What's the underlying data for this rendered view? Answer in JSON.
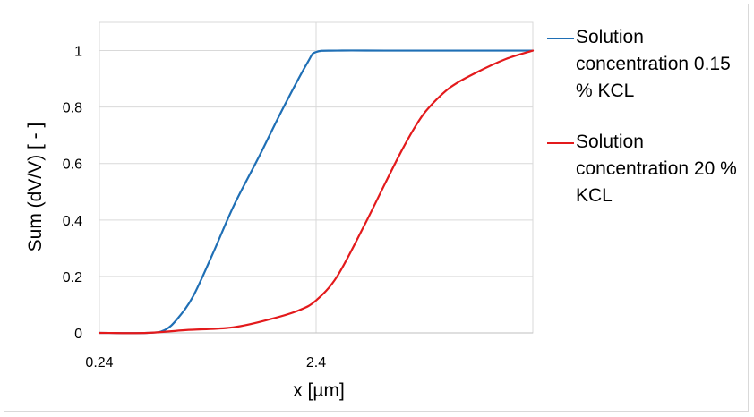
{
  "chart_data": {
    "type": "line",
    "xlabel": "x [µm]",
    "ylabel": "Sum (dV/V) [ - ]",
    "x_scale": "log",
    "xlim": [
      0.24,
      24
    ],
    "ylim": [
      0,
      1.1
    ],
    "x_ticks": [
      0.24,
      2.4
    ],
    "x_tick_labels": [
      "0.24",
      "2.4"
    ],
    "y_ticks": [
      0,
      0.2,
      0.4,
      0.6,
      0.8,
      1
    ],
    "y_tick_labels": [
      "0",
      "0.2",
      "0.4",
      "0.6",
      "0.8",
      "1"
    ],
    "grid": true,
    "legend_position": "right",
    "series": [
      {
        "name": "Solution concentration 0.15 % KCL",
        "color": "#1f6fb5",
        "x": [
          0.24,
          0.4,
          0.48,
          0.55,
          0.65,
          0.8,
          1.0,
          1.3,
          1.7,
          2.2,
          2.4,
          3.0,
          5.0,
          10.0,
          24.0
        ],
        "y": [
          0.0,
          0.0,
          0.01,
          0.05,
          0.13,
          0.28,
          0.45,
          0.62,
          0.8,
          0.96,
          0.995,
          1.0,
          1.0,
          1.0,
          1.0
        ]
      },
      {
        "name": "Solution concentration 20 % KCL",
        "color": "#e31a1c",
        "x": [
          0.24,
          0.4,
          0.6,
          1.0,
          1.5,
          2.0,
          2.4,
          3.0,
          4.0,
          5.0,
          6.0,
          7.0,
          8.0,
          10.0,
          13.0,
          18.0,
          24.0
        ],
        "y": [
          0.0,
          0.0,
          0.01,
          0.02,
          0.05,
          0.08,
          0.115,
          0.2,
          0.38,
          0.53,
          0.65,
          0.74,
          0.8,
          0.87,
          0.92,
          0.97,
          1.0
        ]
      }
    ]
  }
}
